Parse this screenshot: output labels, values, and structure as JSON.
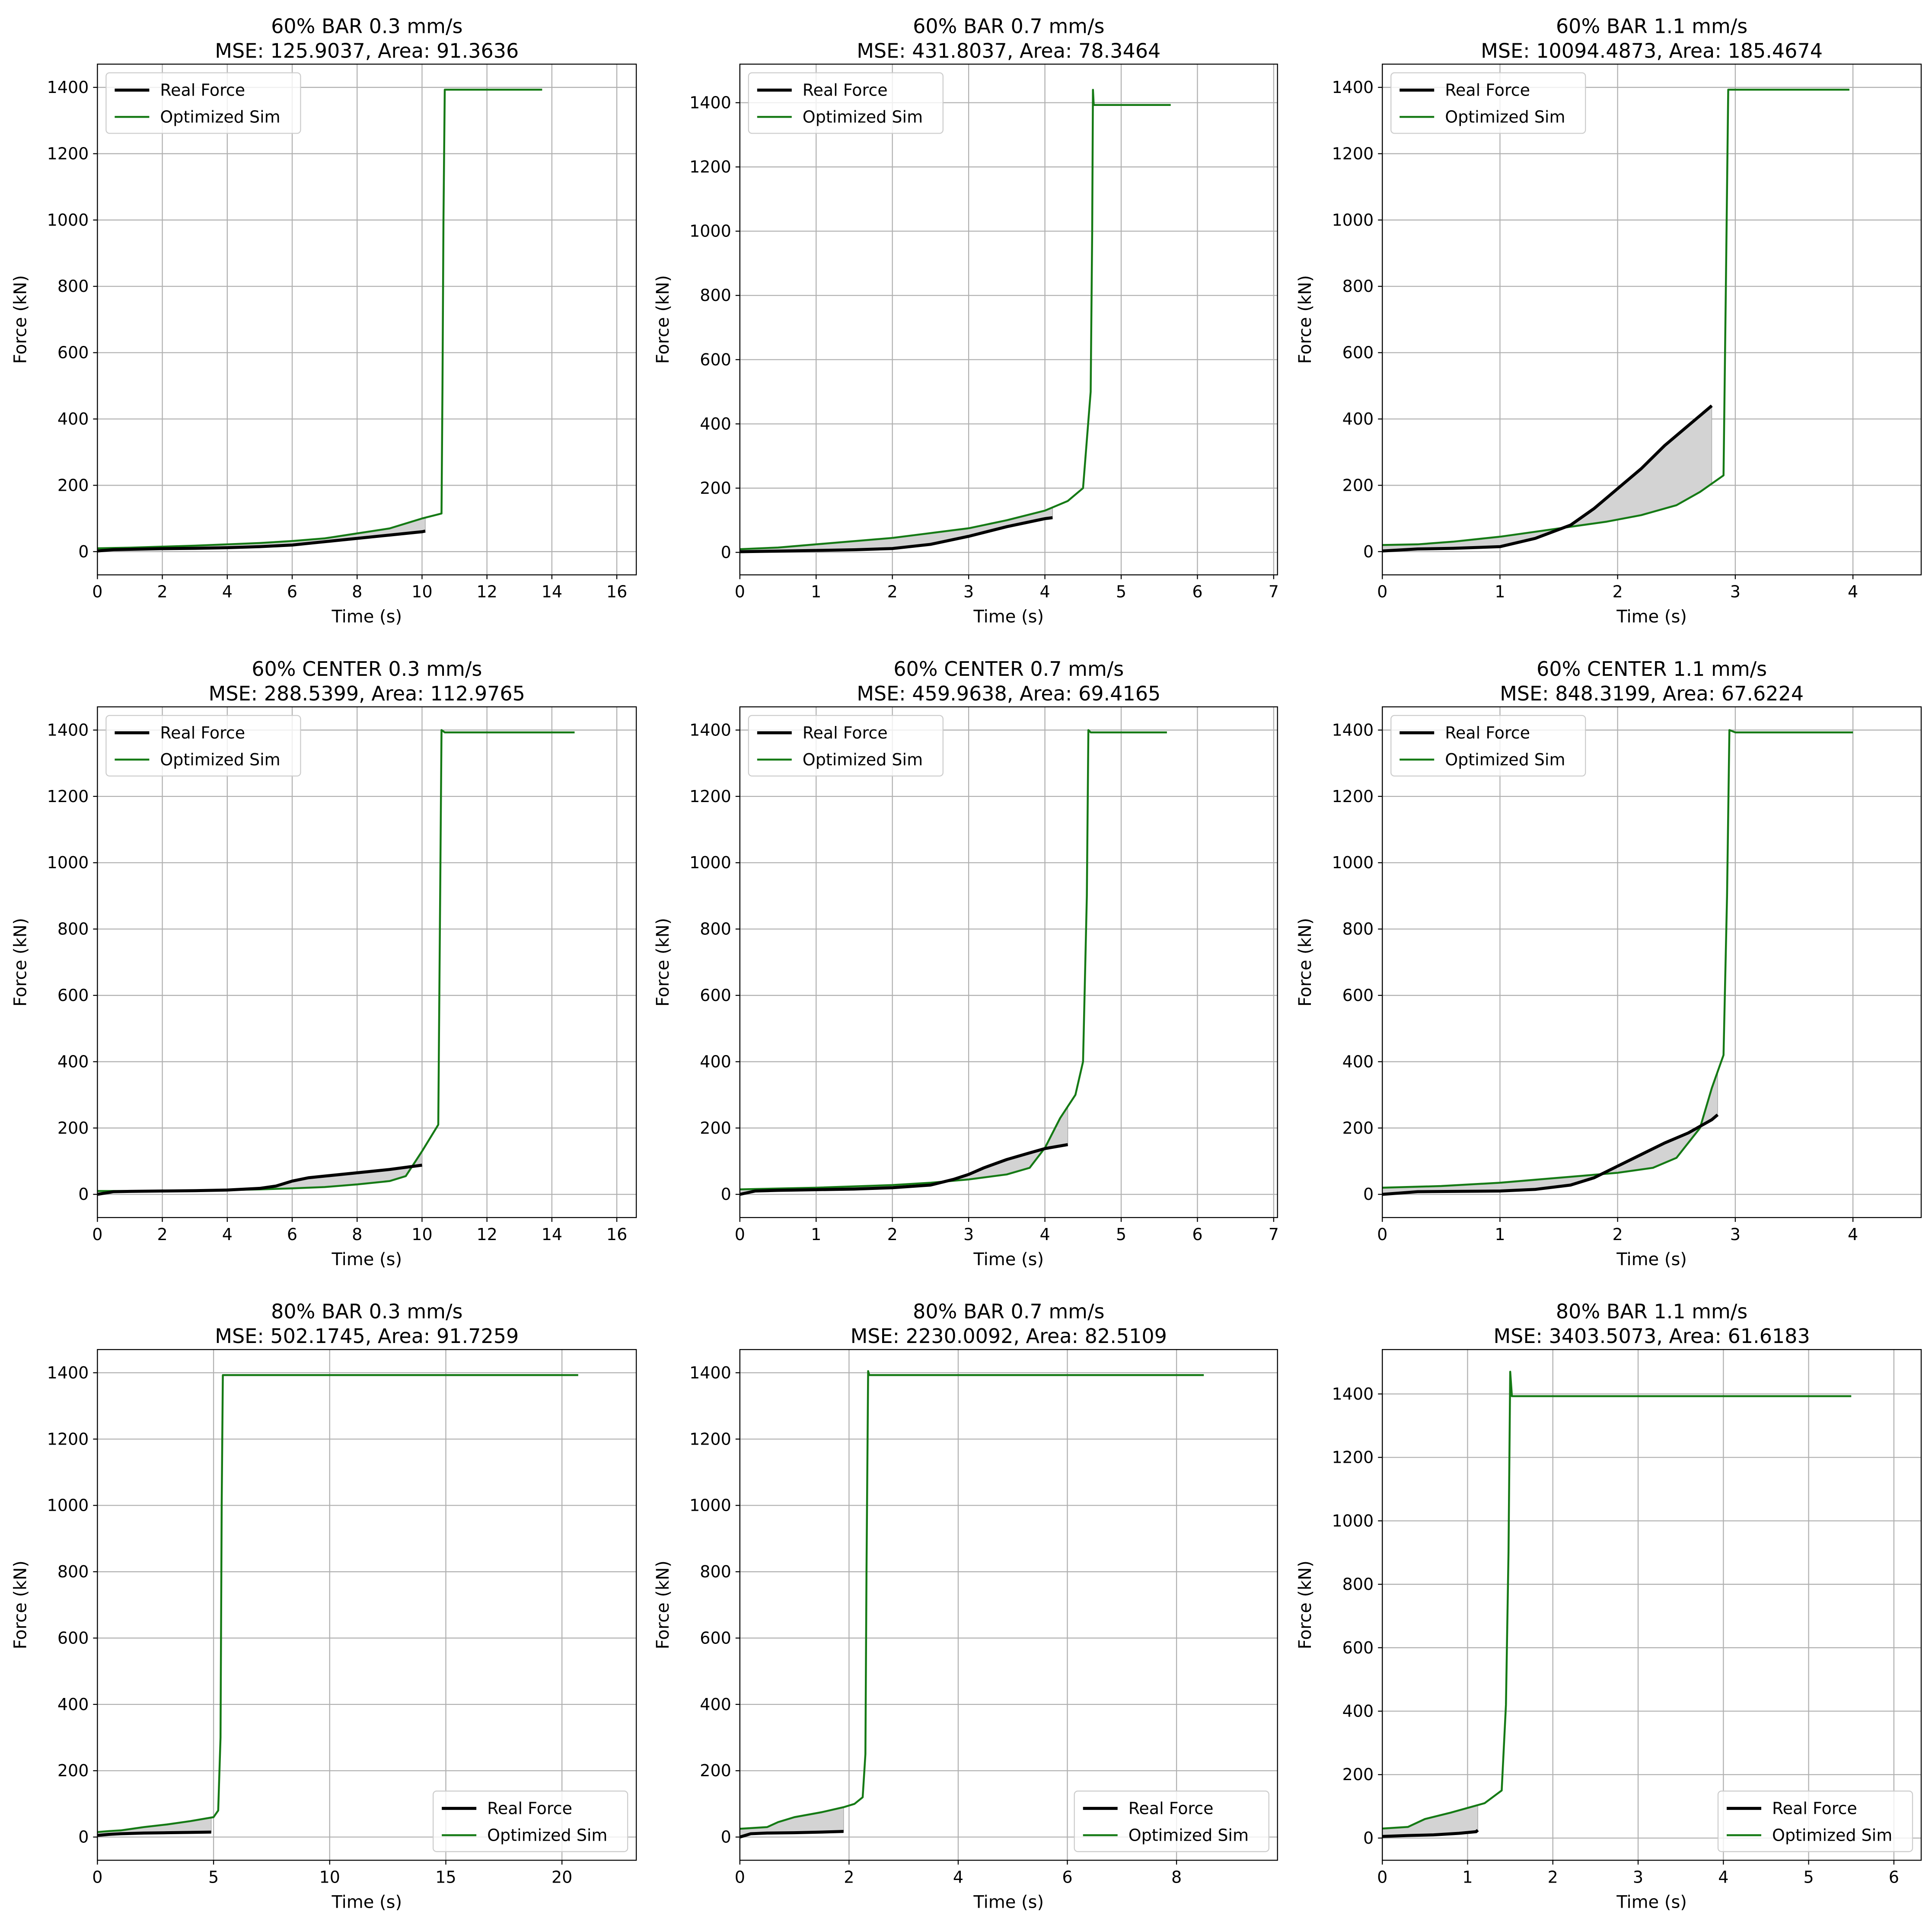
{
  "figure": {
    "colors": {
      "real": "#000000",
      "sim": "#157a15",
      "fill": "#d3d3d3",
      "grid": "#b0b0b0"
    },
    "legend_labels": [
      "Real Force",
      "Optimized Sim"
    ]
  },
  "chart_data": [
    {
      "type": "line",
      "title": "60% BAR 0.3 mm/s",
      "subtitle": "MSE: 125.9037, Area: 91.3636",
      "xlabel": "Time (s)",
      "ylabel": "Force (kN)",
      "xlim": [
        0,
        16.6
      ],
      "ylim": [
        -70,
        1470
      ],
      "xticks": [
        0,
        2,
        4,
        6,
        8,
        10,
        12,
        14,
        16
      ],
      "yticks": [
        0,
        200,
        400,
        600,
        800,
        1000,
        1200,
        1400
      ],
      "grid": true,
      "legend": "top-left",
      "series": [
        {
          "name": "Real Force",
          "x": [
            0,
            0.5,
            1,
            2,
            3,
            4,
            5,
            6,
            7,
            8,
            9,
            10,
            10.1
          ],
          "y": [
            2,
            6,
            7,
            9,
            10,
            12,
            15,
            20,
            30,
            40,
            50,
            60,
            62
          ]
        },
        {
          "name": "Optimized Sim",
          "x": [
            0,
            1,
            2,
            3,
            4,
            5,
            6,
            7,
            8,
            9,
            9.5,
            10,
            10.6,
            10.63,
            10.66,
            10.7,
            11,
            12,
            13,
            13.7
          ],
          "y": [
            10,
            12,
            15,
            18,
            22,
            26,
            32,
            40,
            55,
            70,
            85,
            100,
            115,
            500,
            1000,
            1393,
            1393,
            1393,
            1393,
            1393
          ]
        }
      ]
    },
    {
      "type": "line",
      "title": "60% BAR 0.7 mm/s",
      "subtitle": "MSE: 431.8037, Area: 78.3464",
      "xlabel": "Time (s)",
      "ylabel": "Force (kN)",
      "xlim": [
        0,
        7.05
      ],
      "ylim": [
        -70,
        1520
      ],
      "xticks": [
        0,
        1,
        2,
        3,
        4,
        5,
        6,
        7
      ],
      "yticks": [
        0,
        200,
        400,
        600,
        800,
        1000,
        1200,
        1400
      ],
      "grid": true,
      "legend": "top-left",
      "series": [
        {
          "name": "Real Force",
          "x": [
            0,
            0.5,
            1,
            1.5,
            2,
            2.5,
            3,
            3.5,
            4,
            4.1
          ],
          "y": [
            2,
            4,
            6,
            8,
            12,
            25,
            50,
            80,
            105,
            108
          ]
        },
        {
          "name": "Optimized Sim",
          "x": [
            0,
            0.5,
            1,
            1.5,
            2,
            2.5,
            3,
            3.5,
            4,
            4.3,
            4.5,
            4.6,
            4.62,
            4.63,
            4.64,
            4.65,
            5,
            5.5,
            5.65
          ],
          "y": [
            10,
            15,
            25,
            35,
            45,
            60,
            75,
            100,
            130,
            160,
            200,
            500,
            1000,
            1440,
            1393,
            1393,
            1393,
            1393,
            1393
          ]
        }
      ]
    },
    {
      "type": "line",
      "title": "60% BAR 1.1 mm/s",
      "subtitle": "MSE: 10094.4873, Area: 185.4674",
      "xlabel": "Time (s)",
      "ylabel": "Force (kN)",
      "xlim": [
        0,
        4.58
      ],
      "ylim": [
        -70,
        1470
      ],
      "xticks": [
        0,
        1,
        2,
        3,
        4
      ],
      "yticks": [
        0,
        200,
        400,
        600,
        800,
        1000,
        1200,
        1400
      ],
      "grid": true,
      "legend": "top-left",
      "series": [
        {
          "name": "Real Force",
          "x": [
            0,
            0.3,
            0.6,
            1,
            1.3,
            1.6,
            1.8,
            2,
            2.2,
            2.4,
            2.6,
            2.8
          ],
          "y": [
            2,
            8,
            10,
            15,
            40,
            80,
            130,
            190,
            250,
            320,
            380,
            440
          ]
        },
        {
          "name": "Optimized Sim",
          "x": [
            0,
            0.3,
            0.6,
            1,
            1.3,
            1.6,
            1.9,
            2.2,
            2.5,
            2.7,
            2.9,
            2.92,
            2.94,
            3,
            3.5,
            3.97
          ],
          "y": [
            20,
            22,
            30,
            45,
            60,
            75,
            90,
            110,
            140,
            180,
            230,
            800,
            1393,
            1393,
            1393,
            1393
          ]
        }
      ]
    },
    {
      "type": "line",
      "title": "60% CENTER 0.3 mm/s",
      "subtitle": "MSE: 288.5399, Area: 112.9765",
      "xlabel": "Time (s)",
      "ylabel": "Force (kN)",
      "xlim": [
        0,
        16.6
      ],
      "ylim": [
        -70,
        1470
      ],
      "xticks": [
        0,
        2,
        4,
        6,
        8,
        10,
        12,
        14,
        16
      ],
      "yticks": [
        0,
        200,
        400,
        600,
        800,
        1000,
        1200,
        1400
      ],
      "grid": true,
      "legend": "top-left",
      "series": [
        {
          "name": "Real Force",
          "x": [
            0,
            0.5,
            1,
            2,
            3,
            4,
            5,
            5.5,
            6,
            6.5,
            7,
            8,
            9,
            10
          ],
          "y": [
            0,
            8,
            9,
            10,
            11,
            13,
            18,
            25,
            40,
            50,
            55,
            65,
            75,
            88
          ]
        },
        {
          "name": "Optimized Sim",
          "x": [
            0,
            1,
            2,
            3,
            4,
            5,
            6,
            7,
            8,
            9,
            9.5,
            10,
            10.5,
            10.55,
            10.6,
            10.7,
            12,
            14,
            14.7
          ],
          "y": [
            10,
            10,
            11,
            12,
            13,
            15,
            18,
            22,
            30,
            40,
            55,
            130,
            210,
            800,
            1400,
            1393,
            1393,
            1393,
            1393
          ]
        }
      ]
    },
    {
      "type": "line",
      "title": "60% CENTER 0.7 mm/s",
      "subtitle": "MSE: 459.9638, Area: 69.4165",
      "xlabel": "Time (s)",
      "ylabel": "Force (kN)",
      "xlim": [
        0,
        7.05
      ],
      "ylim": [
        -70,
        1470
      ],
      "xticks": [
        0,
        1,
        2,
        3,
        4,
        5,
        6,
        7
      ],
      "yticks": [
        0,
        200,
        400,
        600,
        800,
        1000,
        1200,
        1400
      ],
      "grid": true,
      "legend": "top-left",
      "series": [
        {
          "name": "Real Force",
          "x": [
            0,
            0.2,
            0.5,
            1,
            1.5,
            2,
            2.5,
            2.8,
            3,
            3.2,
            3.5,
            3.8,
            4,
            4.3
          ],
          "y": [
            0,
            10,
            12,
            14,
            16,
            20,
            28,
            45,
            60,
            80,
            105,
            125,
            138,
            150
          ]
        },
        {
          "name": "Optimized Sim",
          "x": [
            0,
            1,
            2,
            2.5,
            3,
            3.5,
            3.8,
            4,
            4.2,
            4.4,
            4.5,
            4.55,
            4.57,
            4.6,
            5,
            5.6
          ],
          "y": [
            15,
            20,
            28,
            35,
            45,
            60,
            80,
            140,
            230,
            300,
            400,
            900,
            1400,
            1393,
            1393,
            1393
          ]
        }
      ]
    },
    {
      "type": "line",
      "title": "60% CENTER 1.1 mm/s",
      "subtitle": "MSE: 848.3199, Area: 67.6224",
      "xlabel": "Time (s)",
      "ylabel": "Force (kN)",
      "xlim": [
        0,
        4.58
      ],
      "ylim": [
        -70,
        1470
      ],
      "xticks": [
        0,
        1,
        2,
        3,
        4
      ],
      "yticks": [
        0,
        200,
        400,
        600,
        800,
        1000,
        1200,
        1400
      ],
      "grid": true,
      "legend": "top-left",
      "series": [
        {
          "name": "Real Force",
          "x": [
            0,
            0.3,
            0.6,
            1,
            1.3,
            1.6,
            1.8,
            2,
            2.2,
            2.4,
            2.6,
            2.8,
            2.85
          ],
          "y": [
            0,
            8,
            9,
            10,
            15,
            28,
            50,
            85,
            120,
            155,
            185,
            225,
            240
          ]
        },
        {
          "name": "Optimized Sim",
          "x": [
            0,
            0.5,
            1,
            1.5,
            2,
            2.3,
            2.5,
            2.7,
            2.8,
            2.9,
            2.93,
            2.95,
            3,
            3.5,
            4
          ],
          "y": [
            20,
            25,
            35,
            50,
            65,
            80,
            110,
            200,
            320,
            420,
            900,
            1400,
            1393,
            1393,
            1393
          ]
        }
      ]
    },
    {
      "type": "line",
      "title": "80% BAR 0.3 mm/s",
      "subtitle": "MSE: 502.1745, Area: 91.7259",
      "xlabel": "Time (s)",
      "ylabel": "Force (kN)",
      "xlim": [
        0,
        23.2
      ],
      "ylim": [
        -70,
        1470
      ],
      "xticks": [
        0,
        5,
        10,
        15,
        20
      ],
      "yticks": [
        0,
        200,
        400,
        600,
        800,
        1000,
        1200,
        1400
      ],
      "grid": true,
      "legend": "bottom-right",
      "series": [
        {
          "name": "Real Force",
          "x": [
            0,
            0.5,
            1,
            2,
            3,
            4,
            4.9
          ],
          "y": [
            5,
            8,
            10,
            12,
            13,
            14,
            15
          ]
        },
        {
          "name": "Optimized Sim",
          "x": [
            0,
            0.5,
            1,
            1.5,
            2,
            3,
            4,
            5,
            5.2,
            5.3,
            5.35,
            5.4,
            6,
            10,
            15,
            20.7
          ],
          "y": [
            15,
            18,
            20,
            25,
            30,
            38,
            48,
            60,
            80,
            300,
            1000,
            1393,
            1393,
            1393,
            1393,
            1393
          ]
        }
      ]
    },
    {
      "type": "line",
      "title": "80% BAR 0.7 mm/s",
      "subtitle": "MSE: 2230.0092, Area: 82.5109",
      "xlabel": "Time (s)",
      "ylabel": "Force (kN)",
      "xlim": [
        0,
        9.85
      ],
      "ylim": [
        -70,
        1470
      ],
      "xticks": [
        0,
        2,
        4,
        6,
        8
      ],
      "yticks": [
        0,
        200,
        400,
        600,
        800,
        1000,
        1200,
        1400
      ],
      "grid": true,
      "legend": "bottom-right",
      "series": [
        {
          "name": "Real Force",
          "x": [
            0,
            0.2,
            0.5,
            1,
            1.5,
            1.9
          ],
          "y": [
            0,
            10,
            12,
            13,
            15,
            17
          ]
        },
        {
          "name": "Optimized Sim",
          "x": [
            0,
            0.5,
            0.7,
            1,
            1.5,
            1.9,
            2.1,
            2.25,
            2.3,
            2.32,
            2.35,
            2.37,
            3,
            5,
            8.5
          ],
          "y": [
            25,
            30,
            45,
            60,
            75,
            90,
            100,
            120,
            250,
            800,
            1405,
            1393,
            1393,
            1393,
            1393
          ]
        }
      ]
    },
    {
      "type": "line",
      "title": "80% BAR 1.1 mm/s",
      "subtitle": "MSE: 3403.5073, Area: 61.6183",
      "xlabel": "Time (s)",
      "ylabel": "Force (kN)",
      "xlim": [
        0,
        6.32
      ],
      "ylim": [
        -70,
        1540
      ],
      "xticks": [
        0,
        1,
        2,
        3,
        4,
        5,
        6
      ],
      "yticks": [
        0,
        200,
        400,
        600,
        800,
        1000,
        1200,
        1400
      ],
      "grid": true,
      "legend": "bottom-right",
      "series": [
        {
          "name": "Real Force",
          "x": [
            0,
            0.3,
            0.6,
            0.9,
            1.1,
            1.12
          ],
          "y": [
            5,
            8,
            10,
            15,
            20,
            25
          ]
        },
        {
          "name": "Optimized Sim",
          "x": [
            0,
            0.3,
            0.5,
            0.8,
            1,
            1.2,
            1.4,
            1.45,
            1.48,
            1.5,
            1.52,
            2,
            4,
            5.5
          ],
          "y": [
            30,
            35,
            60,
            80,
            95,
            110,
            150,
            420,
            900,
            1470,
            1393,
            1393,
            1393,
            1393
          ]
        }
      ]
    }
  ]
}
